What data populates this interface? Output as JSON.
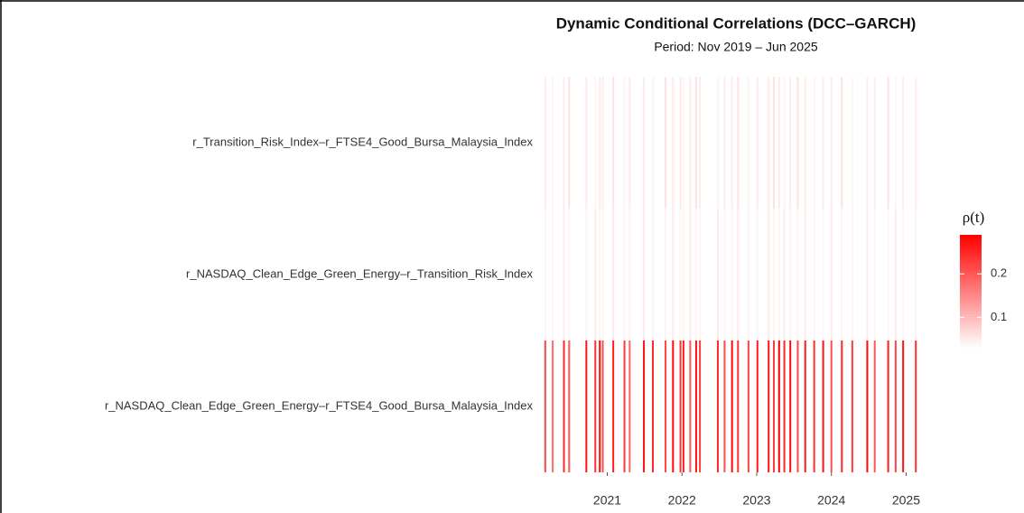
{
  "chart_data": {
    "type": "heatmap",
    "title": "Dynamic Conditional Correlations (DCC–GARCH)",
    "subtitle": "Period: Nov 2019 – Jun 2025",
    "rows": [
      "r_Transition_Risk_Index–r_FTSE4_Good_Bursa_Malaysia_Index",
      "r_NASDAQ_Clean_Edge_Green_Energy–r_Transition_Risk_Index",
      "r_NASDAQ_Clean_Edge_Green_Energy–r_FTSE4_Good_Bursa_Malaysia_Index"
    ],
    "x": [
      2020.17,
      2020.27,
      2020.42,
      2020.49,
      2020.72,
      2020.84,
      2020.9,
      2020.94,
      2021.08,
      2021.23,
      2021.3,
      2021.49,
      2021.61,
      2021.78,
      2021.88,
      2021.98,
      2022.02,
      2022.11,
      2022.19,
      2022.24,
      2022.48,
      2022.57,
      2022.67,
      2022.75,
      2022.89,
      2023.01,
      2023.16,
      2023.23,
      2023.3,
      2023.37,
      2023.45,
      2023.55,
      2023.65,
      2023.77,
      2023.89,
      2024.0,
      2024.14,
      2024.28,
      2024.48,
      2024.58,
      2024.76,
      2024.86,
      2024.96,
      2025.13
    ],
    "values": [
      [
        0.05,
        0.04,
        0.05,
        0.06,
        0.05,
        0.04,
        0.05,
        0.05,
        0.06,
        0.04,
        0.05,
        0.05,
        0.04,
        0.06,
        0.05,
        0.05,
        0.04,
        0.05,
        0.06,
        0.05,
        0.04,
        0.05,
        0.05,
        0.06,
        0.04,
        0.05,
        0.05,
        0.06,
        0.05,
        0.04,
        0.05,
        0.06,
        0.05,
        0.04,
        0.05,
        0.05,
        0.06,
        0.04,
        0.05,
        0.05,
        0.06,
        0.04,
        0.05,
        0.05
      ],
      [
        0.04,
        0.04,
        0.05,
        0.04,
        0.04,
        0.05,
        0.04,
        0.04,
        0.05,
        0.04,
        0.04,
        0.05,
        0.04,
        0.04,
        0.05,
        0.04,
        0.04,
        0.05,
        0.04,
        0.04,
        0.05,
        0.04,
        0.04,
        0.05,
        0.04,
        0.04,
        0.05,
        0.04,
        0.04,
        0.05,
        0.04,
        0.04,
        0.05,
        0.04,
        0.04,
        0.05,
        0.04,
        0.04,
        0.05,
        0.04,
        0.04,
        0.05,
        0.04,
        0.04
      ],
      [
        0.22,
        0.18,
        0.25,
        0.2,
        0.27,
        0.24,
        0.28,
        0.21,
        0.26,
        0.23,
        0.19,
        0.27,
        0.25,
        0.22,
        0.28,
        0.24,
        0.26,
        0.2,
        0.27,
        0.23,
        0.25,
        0.21,
        0.28,
        0.24,
        0.22,
        0.26,
        0.27,
        0.23,
        0.29,
        0.25,
        0.28,
        0.22,
        0.26,
        0.24,
        0.27,
        0.21,
        0.25,
        0.23,
        0.28,
        0.2,
        0.26,
        0.22,
        0.27,
        0.24
      ]
    ],
    "xlim": [
      2020.16,
      2025.2
    ],
    "xticks": [
      2021,
      2022,
      2023,
      2024,
      2025
    ],
    "legend_title": "ρ(t)",
    "clim": [
      0.03,
      0.29
    ],
    "cticks": [
      0.1,
      0.2
    ],
    "colors": [
      "#ffffff",
      "#ff0000"
    ]
  }
}
